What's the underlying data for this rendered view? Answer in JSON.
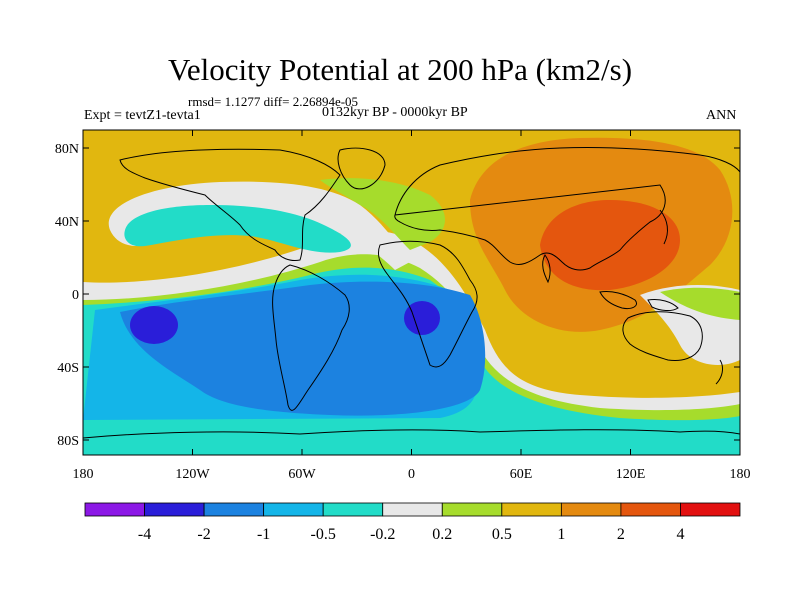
{
  "title": "Velocity Potential at 200 hPa (km2/s)",
  "stats_line": "rmsd= 1.1277  diff= 2.26894e-05",
  "experiment": "Expt = tevtZ1-tevta1",
  "period": "0132kyr BP - 0000kyr BP",
  "season": "ANN",
  "y_axis_labels": [
    "80N",
    "40N",
    "0",
    "40S",
    "80S"
  ],
  "x_axis_labels": [
    "180",
    "120W",
    "60W",
    "0",
    "60E",
    "120E",
    "180"
  ],
  "colorbar": {
    "colors": [
      "#8c18e6",
      "#2a1ed9",
      "#1c82e0",
      "#14b5e8",
      "#22dcc8",
      "#e8e8e8",
      "#a6dc2c",
      "#e1b70f",
      "#e48a10",
      "#e4560e",
      "#e21010"
    ],
    "labels": [
      "-4",
      "-2",
      "-1",
      "-0.5",
      "-0.2",
      "0.2",
      "0.5",
      "1",
      "2",
      "4"
    ]
  }
}
